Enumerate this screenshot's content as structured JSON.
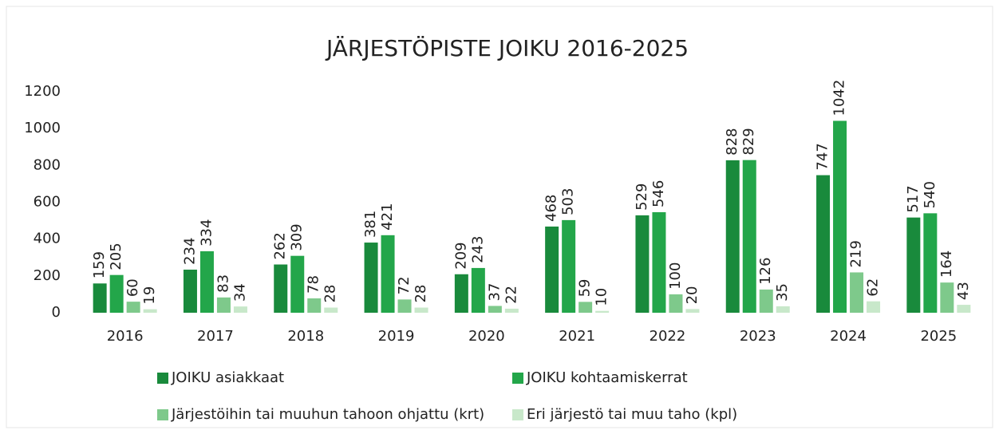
{
  "chart_data": {
    "type": "bar",
    "title": "JÄRJESTÖPISTE JOIKU 2016-2025",
    "categories": [
      "2016",
      "2017",
      "2018",
      "2019",
      "2020",
      "2021",
      "2022",
      "2023",
      "2024",
      "2025"
    ],
    "series": [
      {
        "name": "JOIKU asiakkaat",
        "color": "#198a3c",
        "values": [
          159,
          234,
          262,
          381,
          209,
          468,
          529,
          828,
          747,
          517
        ]
      },
      {
        "name": "JOIKU kohtaamiskerrat",
        "color": "#23a64a",
        "values": [
          205,
          334,
          309,
          421,
          243,
          503,
          546,
          829,
          1042,
          540
        ]
      },
      {
        "name": "Järjestöihin tai muuhun tahoon ohjattu (krt)",
        "color": "#7ec98b",
        "values": [
          60,
          83,
          78,
          72,
          37,
          59,
          100,
          126,
          219,
          164
        ]
      },
      {
        "name": "Eri järjestö tai muu taho (kpl)",
        "color": "#c8e8ca",
        "values": [
          19,
          34,
          28,
          28,
          22,
          10,
          20,
          35,
          62,
          43
        ]
      }
    ],
    "ylim": [
      0,
      1200
    ],
    "yticks": [
      0,
      200,
      400,
      600,
      800,
      1000,
      1200
    ],
    "grid": false,
    "legend": "bottom"
  }
}
